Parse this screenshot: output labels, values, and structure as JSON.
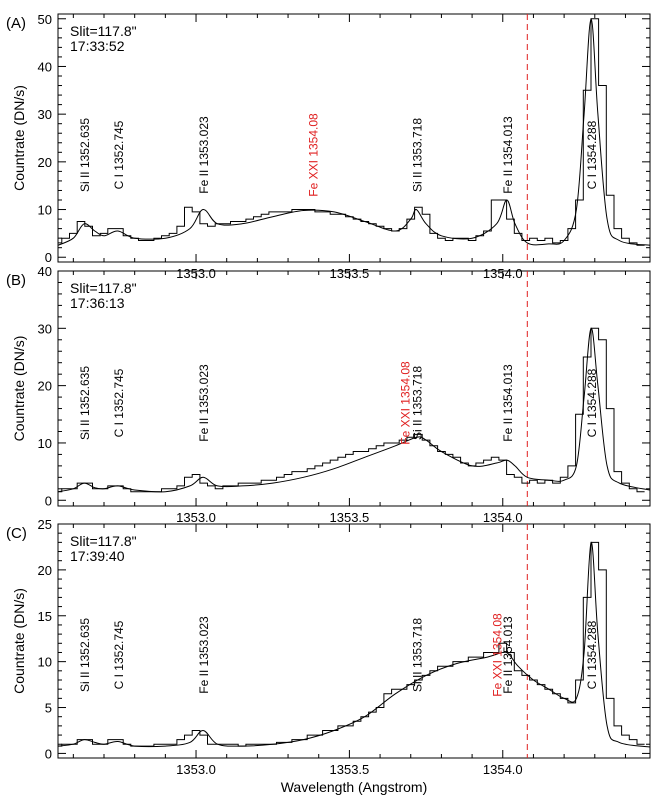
{
  "xlabel": "Wavelength (Angstrom)",
  "ylabel": "Countrate (DN/s)",
  "xlim": [
    1352.55,
    1354.48
  ],
  "x_ticks": [
    1353.0,
    1353.5,
    1354.0
  ],
  "x_tick_labels": [
    "1353.0",
    "1353.5",
    "1354.0"
  ],
  "dashed_line_x": 1354.08,
  "colors": {
    "axes": "#000000",
    "fexxi": "#e02020",
    "dashed": "#e02020",
    "data": "#000000"
  },
  "lines": [
    {
      "label": "Si II 1352.635",
      "x": 1352.635,
      "color": "#000000"
    },
    {
      "label": "C I 1352.745",
      "x": 1352.745,
      "color": "#000000"
    },
    {
      "label": "Fe II 1353.023",
      "x": 1353.023,
      "color": "#000000"
    },
    {
      "label": "Fe XXI 1354.08",
      "x": 1354.08,
      "color": "#e02020"
    },
    {
      "label": "Si II 1353.718",
      "x": 1353.718,
      "color": "#000000"
    },
    {
      "label": "Fe II 1354.013",
      "x": 1354.013,
      "color": "#000000"
    },
    {
      "label": "C I 1354.288",
      "x": 1354.288,
      "color": "#000000"
    }
  ],
  "chart_data": [
    {
      "type": "line",
      "panel": "(A)",
      "slit": "Slit=117.8\"",
      "time": "17:33:52",
      "ylim": [
        -1,
        51
      ],
      "y_ticks": [
        0,
        10,
        20,
        30,
        40,
        50
      ],
      "fexxi_label_x": 1353.38,
      "fit_x": [
        1352.55,
        1352.6,
        1352.635,
        1352.67,
        1352.7,
        1352.745,
        1352.8,
        1352.9,
        1352.98,
        1353.023,
        1353.07,
        1353.15,
        1353.25,
        1353.35,
        1353.45,
        1353.55,
        1353.65,
        1353.7,
        1353.718,
        1353.75,
        1353.8,
        1353.9,
        1353.98,
        1354.013,
        1354.04,
        1354.08,
        1354.15,
        1354.2,
        1354.24,
        1354.265,
        1354.288,
        1354.31,
        1354.34,
        1354.38,
        1354.48
      ],
      "fit_y": [
        2.5,
        4,
        7,
        5.5,
        4.5,
        5.5,
        4,
        4,
        6,
        10,
        7,
        7,
        8.5,
        9.8,
        9.5,
        7.5,
        5.5,
        8,
        10,
        7,
        4.5,
        4,
        7,
        12,
        7,
        3,
        2.8,
        3.5,
        10,
        30,
        50,
        30,
        8,
        3.5,
        2.5
      ],
      "obs_x": [
        1352.55,
        1352.575,
        1352.6,
        1352.625,
        1352.65,
        1352.675,
        1352.7,
        1352.725,
        1352.75,
        1352.775,
        1352.8,
        1352.825,
        1352.85,
        1352.875,
        1352.9,
        1352.925,
        1352.95,
        1352.975,
        1353.0,
        1353.025,
        1353.05,
        1353.075,
        1353.1,
        1353.125,
        1353.15,
        1353.175,
        1353.2,
        1353.225,
        1353.25,
        1353.275,
        1353.3,
        1353.325,
        1353.35,
        1353.375,
        1353.4,
        1353.425,
        1353.45,
        1353.475,
        1353.5,
        1353.525,
        1353.55,
        1353.575,
        1353.6,
        1353.625,
        1353.65,
        1353.675,
        1353.7,
        1353.725,
        1353.75,
        1353.775,
        1353.8,
        1353.825,
        1353.85,
        1353.875,
        1353.9,
        1353.925,
        1353.95,
        1353.975,
        1354.0,
        1354.025,
        1354.05,
        1354.075,
        1354.1,
        1354.125,
        1354.15,
        1354.175,
        1354.2,
        1354.225,
        1354.25,
        1354.275,
        1354.3,
        1354.325,
        1354.35,
        1354.375,
        1354.4,
        1354.425,
        1354.45
      ],
      "obs_y": [
        3,
        4,
        5,
        7.5,
        6.5,
        4.5,
        5,
        6,
        6,
        4.5,
        4,
        3.5,
        3.5,
        4,
        4.5,
        5,
        6.5,
        10.5,
        9.5,
        7,
        6.5,
        7,
        7,
        7.5,
        7.5,
        8,
        8.5,
        9,
        9.5,
        9.5,
        9.5,
        10,
        10,
        10,
        9.5,
        9.5,
        9,
        9,
        8.5,
        8,
        7.5,
        7,
        6.5,
        6,
        5.5,
        6,
        8,
        10.5,
        9,
        5,
        4,
        3.5,
        4,
        4,
        3.5,
        4.5,
        5.5,
        12,
        12,
        8,
        5,
        3.5,
        4,
        3.5,
        4,
        3,
        3.5,
        6,
        12,
        35,
        50,
        36,
        13,
        6,
        4,
        3,
        2.5
      ]
    },
    {
      "type": "line",
      "panel": "(B)",
      "slit": "Slit=117.8\"",
      "time": "17:36:13",
      "ylim": [
        -1,
        40
      ],
      "y_ticks": [
        0,
        10,
        20,
        30,
        40
      ],
      "fexxi_label_x": 1353.68,
      "fit_x": [
        1352.55,
        1352.6,
        1352.635,
        1352.67,
        1352.7,
        1352.745,
        1352.8,
        1352.9,
        1352.98,
        1353.023,
        1353.07,
        1353.15,
        1353.25,
        1353.35,
        1353.45,
        1353.55,
        1353.65,
        1353.72,
        1353.75,
        1353.8,
        1353.9,
        1353.98,
        1354.013,
        1354.04,
        1354.08,
        1354.15,
        1354.2,
        1354.24,
        1354.265,
        1354.288,
        1354.31,
        1354.34,
        1354.38,
        1354.48
      ],
      "fit_y": [
        1.5,
        2,
        3,
        2.2,
        2,
        2.5,
        1.8,
        1.5,
        2.5,
        4,
        2.5,
        2.5,
        3,
        4,
        5.5,
        7.5,
        9.5,
        11,
        10.5,
        8.5,
        6,
        6.5,
        7,
        6,
        4,
        3.5,
        3.5,
        6,
        18,
        30,
        20,
        6,
        3,
        1.8
      ],
      "obs_x": [
        1352.55,
        1352.575,
        1352.6,
        1352.625,
        1352.65,
        1352.675,
        1352.7,
        1352.725,
        1352.75,
        1352.775,
        1352.8,
        1352.825,
        1352.85,
        1352.875,
        1352.9,
        1352.925,
        1352.95,
        1352.975,
        1353.0,
        1353.025,
        1353.05,
        1353.075,
        1353.1,
        1353.125,
        1353.15,
        1353.175,
        1353.2,
        1353.225,
        1353.25,
        1353.275,
        1353.3,
        1353.325,
        1353.35,
        1353.375,
        1353.4,
        1353.425,
        1353.45,
        1353.475,
        1353.5,
        1353.525,
        1353.55,
        1353.575,
        1353.6,
        1353.625,
        1353.65,
        1353.675,
        1353.7,
        1353.725,
        1353.75,
        1353.775,
        1353.8,
        1353.825,
        1353.85,
        1353.875,
        1353.9,
        1353.925,
        1353.95,
        1353.975,
        1354.0,
        1354.025,
        1354.05,
        1354.075,
        1354.1,
        1354.125,
        1354.15,
        1354.175,
        1354.2,
        1354.225,
        1354.25,
        1354.275,
        1354.3,
        1354.325,
        1354.35,
        1354.375,
        1354.4,
        1354.425,
        1354.45
      ],
      "obs_y": [
        1.5,
        2,
        2,
        3,
        3,
        2,
        2,
        2.5,
        2.5,
        2,
        1.5,
        1.5,
        1.5,
        1.5,
        2,
        2,
        2.5,
        4,
        4.5,
        3,
        2.5,
        2,
        2.5,
        2.5,
        3,
        3,
        3,
        3.5,
        3.5,
        4,
        4.5,
        5,
        5,
        5.5,
        6,
        6.5,
        7,
        7.5,
        8,
        8.5,
        8.5,
        9,
        9.5,
        10,
        10,
        10.5,
        11,
        11.5,
        10.5,
        9.5,
        8.5,
        8,
        7.5,
        6.5,
        6,
        6.5,
        7,
        7.5,
        7,
        4.5,
        4,
        3,
        3.5,
        3,
        3.5,
        3,
        4,
        6,
        15,
        25,
        30,
        28,
        16,
        5,
        3,
        2,
        1.5
      ]
    },
    {
      "type": "line",
      "panel": "(C)",
      "slit": "Slit=117.8\"",
      "time": "17:39:40",
      "ylim": [
        -0.5,
        25
      ],
      "y_ticks": [
        0,
        5,
        10,
        15,
        20,
        25
      ],
      "fexxi_label_x": 1353.98,
      "fit_x": [
        1352.55,
        1352.6,
        1352.635,
        1352.67,
        1352.7,
        1352.745,
        1352.8,
        1352.9,
        1352.98,
        1353.023,
        1353.07,
        1353.15,
        1353.25,
        1353.35,
        1353.45,
        1353.55,
        1353.65,
        1353.75,
        1353.85,
        1353.95,
        1354.0,
        1354.02,
        1354.05,
        1354.1,
        1354.15,
        1354.2,
        1354.24,
        1354.265,
        1354.288,
        1354.31,
        1354.34,
        1354.38,
        1354.48
      ],
      "fit_y": [
        0.8,
        1,
        1.5,
        1.2,
        1,
        1.3,
        0.8,
        0.8,
        1.2,
        2.5,
        1,
        0.8,
        1,
        1.5,
        2.5,
        4,
        6.5,
        8.5,
        9.8,
        10.5,
        11,
        10.8,
        9.5,
        8,
        7,
        6,
        6,
        11,
        23,
        13,
        3,
        1.2,
        0.7
      ],
      "obs_x": [
        1352.55,
        1352.575,
        1352.6,
        1352.625,
        1352.65,
        1352.675,
        1352.7,
        1352.725,
        1352.75,
        1352.775,
        1352.8,
        1352.825,
        1352.85,
        1352.875,
        1352.9,
        1352.925,
        1352.95,
        1352.975,
        1353.0,
        1353.025,
        1353.05,
        1353.075,
        1353.1,
        1353.125,
        1353.15,
        1353.175,
        1353.2,
        1353.225,
        1353.25,
        1353.275,
        1353.3,
        1353.325,
        1353.35,
        1353.375,
        1353.4,
        1353.425,
        1353.45,
        1353.475,
        1353.5,
        1353.525,
        1353.55,
        1353.575,
        1353.6,
        1353.625,
        1353.65,
        1353.675,
        1353.7,
        1353.725,
        1353.75,
        1353.775,
        1353.8,
        1353.825,
        1353.85,
        1353.875,
        1353.9,
        1353.925,
        1353.95,
        1353.975,
        1354.0,
        1354.025,
        1354.05,
        1354.075,
        1354.1,
        1354.125,
        1354.15,
        1354.175,
        1354.2,
        1354.225,
        1354.25,
        1354.275,
        1354.3,
        1354.325,
        1354.35,
        1354.375,
        1354.4,
        1354.425,
        1354.45
      ],
      "obs_y": [
        0.8,
        1,
        1,
        1.5,
        1.5,
        1,
        1,
        1.5,
        1.5,
        1,
        0.8,
        0.8,
        0.8,
        1,
        1,
        1,
        1.5,
        2,
        2.5,
        2,
        1,
        1,
        1,
        1,
        0.8,
        1,
        1,
        1,
        1,
        1.2,
        1.2,
        1.5,
        1.5,
        2,
        2,
        2.5,
        2.5,
        3,
        3,
        3.5,
        4,
        4.5,
        5,
        6.5,
        7,
        7,
        7.5,
        8,
        8.5,
        9,
        9.5,
        9.5,
        10,
        10,
        10.5,
        10.5,
        11,
        11,
        12,
        11,
        9,
        8.5,
        8,
        7.5,
        7,
        6.5,
        6,
        5.5,
        8,
        17,
        23,
        20,
        6,
        3,
        2,
        1.5,
        1
      ]
    }
  ]
}
